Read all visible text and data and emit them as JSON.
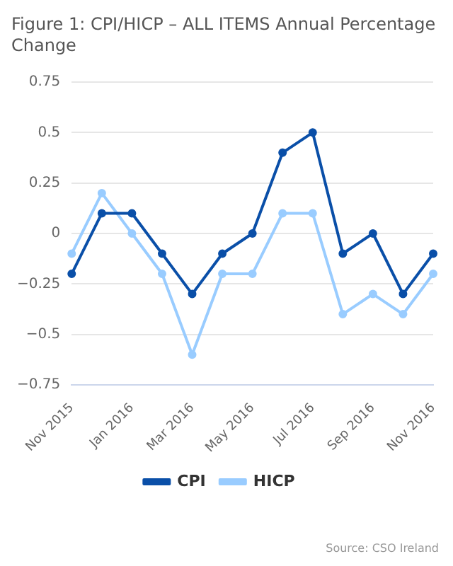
{
  "chart_data": {
    "type": "line",
    "title": "Figure 1: CPI/HICP – ALL ITEMS Annual Percentage Change",
    "categories": [
      "Nov 2015",
      null,
      "Jan 2016",
      null,
      "Mar 2016",
      null,
      "May 2016",
      null,
      "Jul 2016",
      null,
      "Sep 2016",
      null,
      "Nov 2016"
    ],
    "series": [
      {
        "name": "CPI",
        "color": "#0a4fa8",
        "values": [
          -0.2,
          0.1,
          0.1,
          -0.1,
          -0.3,
          -0.1,
          0,
          0.4,
          0.5,
          -0.1,
          0,
          -0.3,
          -0.1
        ]
      },
      {
        "name": "HICP",
        "color": "#99ccff",
        "values": [
          -0.1,
          0.2,
          0,
          -0.2,
          -0.6,
          -0.2,
          -0.2,
          0.1,
          0.1,
          -0.4,
          -0.3,
          -0.4,
          -0.2
        ]
      }
    ],
    "ylim": [
      -0.75,
      0.75
    ],
    "yticks": [
      {
        "value": -0.75,
        "label": "−0.75"
      },
      {
        "value": -0.5,
        "label": "−0.5"
      },
      {
        "value": -0.25,
        "label": "−0.25"
      },
      0,
      0.25,
      0.5,
      0.75
    ],
    "grid": "y",
    "legend": "bottom",
    "marker": "circle",
    "line_style": "solid",
    "annotations": [
      "Source: CSO Ireland"
    ]
  }
}
